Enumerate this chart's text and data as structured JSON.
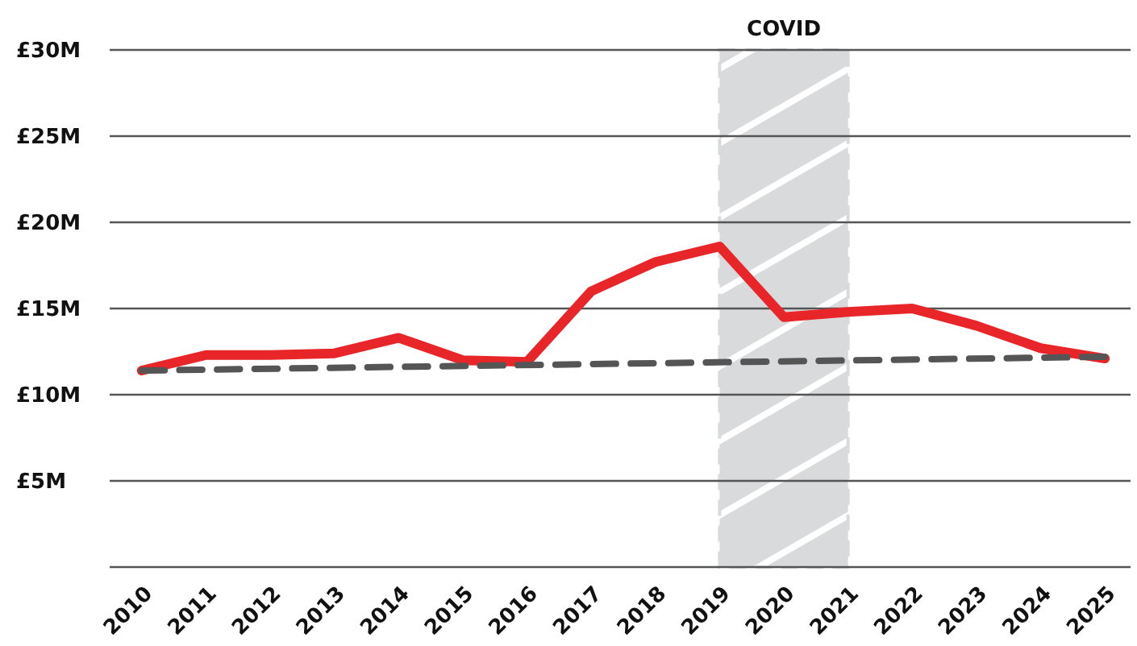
{
  "chart_data": {
    "type": "line",
    "xlim": [
      2009.5,
      2025.4
    ],
    "xticks": [
      2010,
      2011,
      2012,
      2013,
      2014,
      2015,
      2016,
      2017,
      2018,
      2019,
      2020,
      2021,
      2022,
      2023,
      2024,
      2025
    ],
    "ylim": [
      0,
      30
    ],
    "yticks": [
      {
        "value": 5,
        "label": "£5M"
      },
      {
        "value": 10,
        "label": "£10M"
      },
      {
        "value": 15,
        "label": "£15M"
      },
      {
        "value": 20,
        "label": "£20M"
      },
      {
        "value": 25,
        "label": "£25M"
      },
      {
        "value": 30,
        "label": "£30M"
      }
    ],
    "grid": "y",
    "series": [
      {
        "color": "#e8262a",
        "line_style": "solid",
        "x": [
          2010,
          2011,
          2012,
          2013,
          2014,
          2015,
          2016,
          2017,
          2018,
          2019,
          2020,
          2021,
          2022,
          2023,
          2024,
          2025
        ],
        "values": [
          11.4,
          12.3,
          12.3,
          12.4,
          13.3,
          12.0,
          11.9,
          16.0,
          17.7,
          18.6,
          14.5,
          14.8,
          15.0,
          14.0,
          12.7,
          12.1
        ]
      },
      {
        "color": "#555555",
        "line_style": "dashed",
        "x": [
          2010,
          2025
        ],
        "values": [
          11.4,
          12.2
        ]
      }
    ],
    "bands": [
      {
        "axis": "x",
        "from": 2019,
        "to": 2021,
        "label": "COVID",
        "color": "#d9dadc"
      }
    ]
  }
}
